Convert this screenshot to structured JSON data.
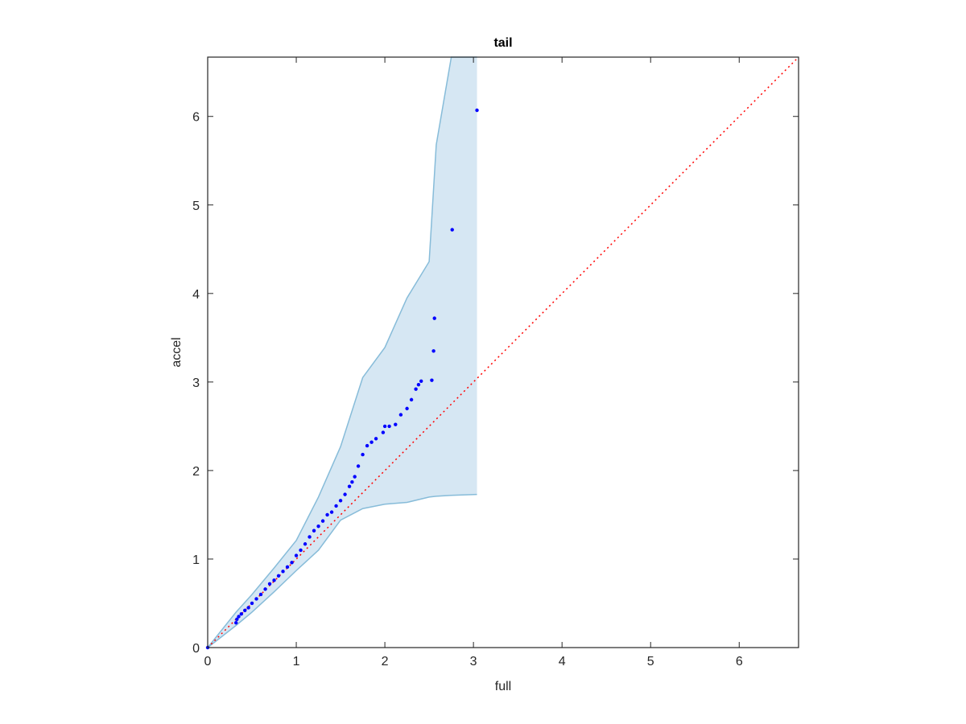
{
  "chart_data": {
    "type": "scatter",
    "title": "tail",
    "xlabel": "full",
    "ylabel": "accel",
    "xlim": [
      0,
      6.67
    ],
    "ylim": [
      0,
      6.67
    ],
    "xticks": [
      0,
      1,
      2,
      3,
      4,
      5,
      6
    ],
    "yticks": [
      0,
      1,
      2,
      3,
      4,
      5,
      6
    ],
    "series": [
      {
        "color": "#0000ff",
        "x": [
          0,
          0.32,
          0.33,
          0.35,
          0.38,
          0.42,
          0.46,
          0.5,
          0.55,
          0.6,
          0.65,
          0.7,
          0.75,
          0.8,
          0.85,
          0.9,
          0.95,
          1.0,
          1.05,
          1.1,
          1.15,
          1.2,
          1.25,
          1.3,
          1.35,
          1.4,
          1.45,
          1.5,
          1.55,
          1.6,
          1.63,
          1.66,
          1.7,
          1.75,
          1.8,
          1.85,
          1.9,
          1.98,
          2.0,
          2.05,
          2.12,
          2.18,
          2.25,
          2.3,
          2.35,
          2.38,
          2.41,
          2.53,
          2.55,
          2.56,
          2.76,
          3.04
        ],
        "values": [
          0,
          0.28,
          0.32,
          0.35,
          0.38,
          0.42,
          0.45,
          0.5,
          0.55,
          0.6,
          0.66,
          0.72,
          0.76,
          0.81,
          0.86,
          0.91,
          0.96,
          1.04,
          1.1,
          1.17,
          1.25,
          1.32,
          1.37,
          1.43,
          1.5,
          1.53,
          1.6,
          1.66,
          1.73,
          1.82,
          1.87,
          1.93,
          2.05,
          2.18,
          2.28,
          2.32,
          2.36,
          2.43,
          2.5,
          2.5,
          2.52,
          2.63,
          2.7,
          2.8,
          2.92,
          2.97,
          3.01,
          3.02,
          3.35,
          3.72,
          4.72,
          6.07
        ]
      }
    ],
    "band": {
      "color": "#d6e7f3",
      "edge_color": "#87bcd9",
      "x": [
        0,
        0.32,
        0.5,
        0.75,
        1.0,
        1.25,
        1.5,
        1.75,
        2.0,
        2.25,
        2.5,
        2.58,
        2.75,
        3.04
      ],
      "lower": [
        0,
        0.25,
        0.4,
        0.63,
        0.87,
        1.1,
        1.44,
        1.57,
        1.62,
        1.64,
        1.7,
        1.71,
        1.72,
        1.73
      ],
      "upper": [
        0,
        0.4,
        0.6,
        0.9,
        1.21,
        1.7,
        2.27,
        3.05,
        3.39,
        3.95,
        4.36,
        5.68,
        6.67,
        6.67
      ]
    },
    "reference_line": {
      "color": "#ff0000",
      "x": [
        0,
        6.67
      ],
      "values": [
        0,
        6.67
      ]
    }
  }
}
